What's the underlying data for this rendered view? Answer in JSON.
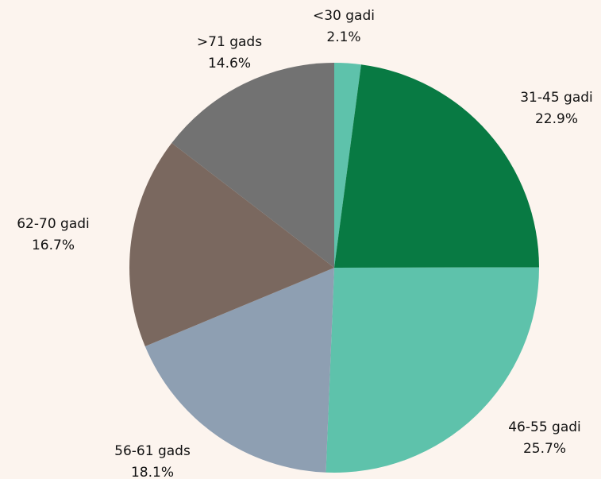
{
  "chart_data": {
    "type": "pie",
    "title": "",
    "slices": [
      {
        "label": "<30 gadi",
        "value": 2.1,
        "value_label": "2.1%",
        "color": "#5ec2ab"
      },
      {
        "label": "31-45 gadi",
        "value": 22.9,
        "value_label": "22.9%",
        "color": "#087a43"
      },
      {
        "label": "46-55 gadi",
        "value": 25.7,
        "value_label": "25.7%",
        "color": "#5ec2ab"
      },
      {
        "label": "56-61 gads",
        "value": 18.1,
        "value_label": "18.1%",
        "color": "#8e9fb2"
      },
      {
        "label": "62-70 gadi",
        "value": 16.7,
        "value_label": "16.7%",
        "color": "#7a685f"
      },
      {
        "label": ">71 gads",
        "value": 14.6,
        "value_label": "14.6%",
        "color": "#727272"
      }
    ],
    "start_angle": "12 o'clock",
    "direction": "clockwise",
    "legend": "none",
    "labels": "outside"
  }
}
